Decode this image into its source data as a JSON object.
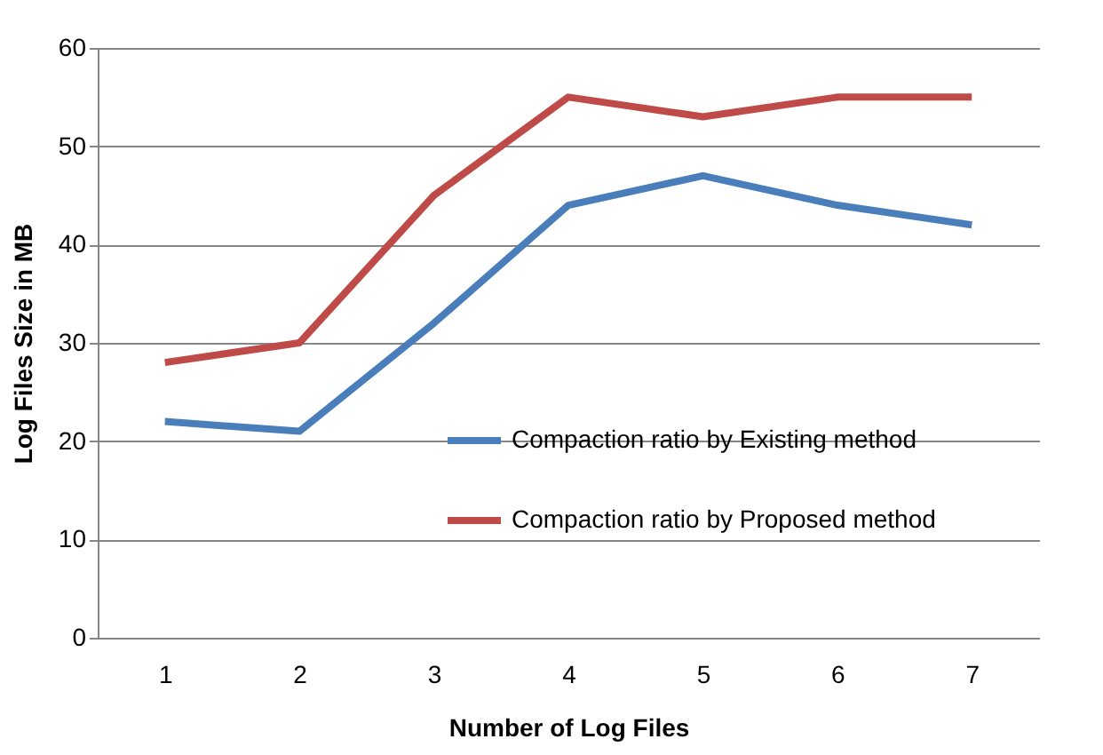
{
  "chart_data": {
    "type": "line",
    "xlabel": "Number of Log Files",
    "ylabel": "Log Files Size in MB",
    "categories": [
      "1",
      "2",
      "3",
      "4",
      "5",
      "6",
      "7"
    ],
    "series": [
      {
        "name": "Compaction ratio by Existing method",
        "color": "#4a7ebb",
        "values": [
          22,
          21,
          32,
          44,
          47,
          44,
          42
        ]
      },
      {
        "name": "Compaction ratio by Proposed method",
        "color": "#be4b48",
        "values": [
          28,
          30,
          45,
          55,
          53,
          55,
          55
        ]
      }
    ],
    "ylim": [
      0,
      60
    ],
    "yticks": [
      0,
      10,
      20,
      30,
      40,
      50,
      60
    ],
    "grid": "y",
    "legend": "bottom right",
    "marker": "none",
    "line_style": "solid"
  }
}
